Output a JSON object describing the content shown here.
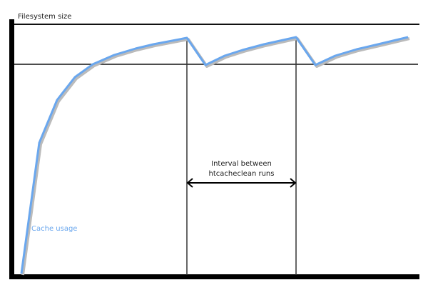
{
  "y_axis_label": "Filesystem size",
  "interval_label_line1": "Interval between",
  "interval_label_line2": "htcacheclean runs",
  "series_label": "Cache usage",
  "colors": {
    "curve": "#6aa7ee",
    "axis": "#000000",
    "label_blue": "#6aa7ee"
  }
}
